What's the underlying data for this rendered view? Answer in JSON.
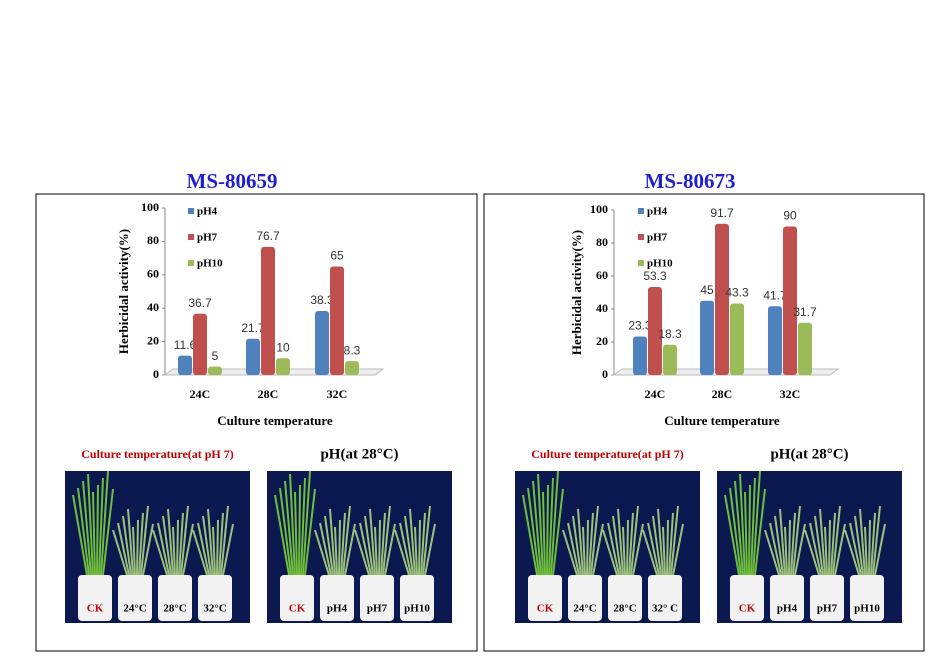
{
  "chart_data": [
    {
      "type": "bar",
      "title": "MS-80659",
      "ylabel": "Herbicidal activity(%)",
      "xlabel": "Culture temperature",
      "categories": [
        "24C",
        "28C",
        "32C"
      ],
      "series": [
        {
          "name": "pH4",
          "color": "#4f81bd",
          "values": [
            11.6,
            21.7,
            38.3
          ]
        },
        {
          "name": "pH7",
          "color": "#c0504d",
          "values": [
            36.7,
            76.7,
            65
          ]
        },
        {
          "name": "pH10",
          "color": "#9bbb59",
          "values": [
            5,
            10,
            8.3
          ]
        }
      ],
      "ylim": [
        0,
        100
      ],
      "yticks": [
        0,
        20,
        40,
        60,
        80,
        100
      ]
    },
    {
      "type": "bar",
      "title": "MS-80673",
      "ylabel": "Herbicidal activity(%)",
      "xlabel": "Culture temperature",
      "categories": [
        "24C",
        "28C",
        "32C"
      ],
      "series": [
        {
          "name": "pH4",
          "color": "#4f81bd",
          "values": [
            23.3,
            45,
            41.7
          ]
        },
        {
          "name": "pH7",
          "color": "#c0504d",
          "values": [
            53.3,
            91.7,
            90
          ]
        },
        {
          "name": "pH10",
          "color": "#9bbb59",
          "values": [
            18.3,
            43.3,
            31.7
          ]
        }
      ],
      "ylim": [
        0,
        100
      ],
      "yticks": [
        0,
        20,
        40,
        60,
        80,
        100
      ]
    }
  ],
  "photos": [
    [
      {
        "caption": "Culture temperature(at pH 7)",
        "labels": [
          "CK",
          "24°C",
          "28°C",
          "32°C"
        ]
      },
      {
        "caption": "pH(at 28°C)",
        "labels": [
          "CK",
          "pH4",
          "pH7",
          "pH10"
        ]
      }
    ],
    [
      {
        "caption": "Culture temperature(at pH 7)",
        "labels": [
          "CK",
          "24°C",
          "28°C",
          "32° C"
        ]
      },
      {
        "caption": "pH(at 28°C)",
        "labels": [
          "CK",
          "pH4",
          "pH7",
          "pH10"
        ]
      }
    ]
  ]
}
